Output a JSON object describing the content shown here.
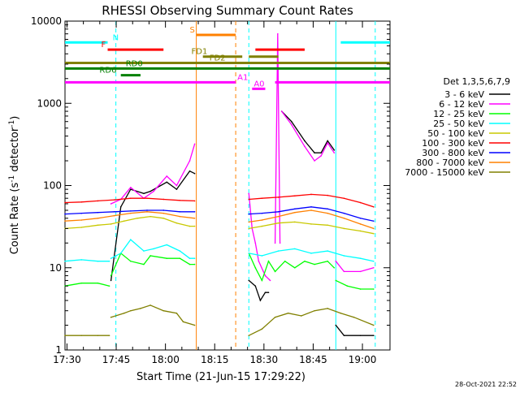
{
  "chart_data": {
    "type": "line",
    "title": "RHESSI Observing Summary Count Rates",
    "xlabel": "Start Time (21-Jun-15 17:29:22)",
    "ylabel_main": "Count Rate (s",
    "ylabel_sup1": "-1",
    "ylabel_mid": " detector",
    "ylabel_sup2": "-1",
    "ylabel_end": ")",
    "timestamp": "28-Oct-2021 22:52",
    "yscale": "log",
    "ylim": [
      1,
      10000
    ],
    "xlim_min": [
      0,
      99
    ],
    "x_ticks": [
      {
        "label": "17:30",
        "min": 0.6
      },
      {
        "label": "17:45",
        "min": 15.6
      },
      {
        "label": "18:00",
        "min": 30.6
      },
      {
        "label": "18:15",
        "min": 45.6
      },
      {
        "label": "18:30",
        "min": 60.6
      },
      {
        "label": "18:45",
        "min": 75.6
      },
      {
        "label": "19:00",
        "min": 90.6
      }
    ],
    "y_ticks": [
      {
        "label": "1",
        "v": 1
      },
      {
        "label": "10",
        "v": 10
      },
      {
        "label": "100",
        "v": 100
      },
      {
        "label": "1000",
        "v": 1000
      },
      {
        "label": "10000",
        "v": 10000
      }
    ],
    "legend_title": "Det 1,3,5,6,7,9",
    "legend_position": "right",
    "series": [
      {
        "name": "3 - 6 keV",
        "color": "#000000",
        "segments": [
          {
            "x": [
              14,
              17,
              20,
              24,
              26,
              31,
              34,
              38,
              39.5
            ],
            "y": [
              7,
              55,
              90,
              80,
              85,
              110,
              90,
              150,
              140
            ]
          },
          {
            "x": [
              56,
              58,
              59.5,
              61,
              62
            ],
            "y": [
              7,
              6,
              4,
              5,
              5
            ]
          },
          {
            "x": [
              66,
              69,
              73,
              76,
              78,
              80,
              82
            ],
            "y": [
              800,
              600,
              350,
              250,
              250,
              350,
              270
            ]
          },
          {
            "x": [
              82.5,
              85,
              90,
              94
            ],
            "y": [
              2,
              1.5,
              1.5,
              1.5
            ]
          }
        ]
      },
      {
        "name": "6 - 12 keV",
        "color": "#ff00ff",
        "segments": [
          {
            "x": [
              14,
              17,
              20,
              24,
              27,
              31,
              34,
              38,
              39.5
            ],
            "y": [
              60,
              68,
              95,
              70,
              85,
              130,
              100,
              200,
              320
            ]
          },
          {
            "x": [
              56,
              57,
              58,
              59,
              61,
              62.5
            ],
            "y": [
              80,
              30,
              20,
              12,
              8,
              7
            ]
          },
          {
            "x": [
              64,
              64.8,
              65.5
            ],
            "y": [
              20,
              7000,
              20
            ]
          },
          {
            "x": [
              66,
              69,
              73,
              76,
              78,
              80,
              82
            ],
            "y": [
              800,
              550,
              300,
              200,
              230,
              330,
              250
            ]
          },
          {
            "x": [
              82.5,
              85,
              90,
              94
            ],
            "y": [
              12,
              9,
              9,
              10
            ]
          }
        ]
      },
      {
        "name": "12 - 25 keV",
        "color": "#00ff00",
        "segments": [
          {
            "x": [
              0,
              5,
              10,
              13.5
            ],
            "y": [
              6,
              6.5,
              6.5,
              6
            ]
          },
          {
            "x": [
              14,
              17,
              20,
              24,
              26,
              31,
              35,
              38,
              39.5
            ],
            "y": [
              8,
              15,
              12,
              11,
              14,
              13,
              13,
              11,
              11
            ]
          },
          {
            "x": [
              56,
              58,
              60,
              62,
              64,
              67,
              70,
              73,
              76,
              80,
              82
            ],
            "y": [
              15,
              10,
              7,
              12,
              9,
              12,
              10,
              12,
              11,
              12,
              10
            ]
          },
          {
            "x": [
              82.5,
              86,
              90,
              94
            ],
            "y": [
              7,
              6,
              5.5,
              5.5
            ]
          }
        ]
      },
      {
        "name": "25 - 50 keV",
        "color": "#00ffff",
        "segments": [
          {
            "x": [
              0,
              5,
              10,
              13.5
            ],
            "y": [
              12,
              12.5,
              12,
              12
            ]
          },
          {
            "x": [
              14,
              17,
              20,
              24,
              27,
              31,
              35,
              38,
              39.5
            ],
            "y": [
              13,
              15,
              22,
              16,
              17,
              19,
              16,
              13,
              13
            ]
          },
          {
            "x": [
              56,
              60,
              65,
              70,
              75,
              80,
              85,
              90,
              94
            ],
            "y": [
              15,
              14,
              16,
              17,
              15,
              16,
              14,
              13,
              12
            ]
          }
        ]
      },
      {
        "name": "50 - 100 keV",
        "color": "#c8c800",
        "segments": [
          {
            "x": [
              0,
              5,
              10,
              14,
              18,
              22,
              26,
              30,
              34,
              38,
              39.5
            ],
            "y": [
              30,
              31,
              33,
              34,
              37,
              40,
              42,
              40,
              35,
              32,
              32
            ]
          },
          {
            "x": [
              56,
              60,
              65,
              70,
              75,
              80,
              85,
              90,
              94
            ],
            "y": [
              30,
              32,
              35,
              36,
              34,
              33,
              30,
              28,
              26
            ]
          }
        ]
      },
      {
        "name": "100 - 300 keV",
        "color": "#ff0000",
        "segments": [
          {
            "x": [
              0,
              5,
              10,
              15,
              20,
              25,
              30,
              35,
              39.5
            ],
            "y": [
              62,
              63,
              65,
              67,
              70,
              70,
              68,
              66,
              65
            ]
          },
          {
            "x": [
              56,
              60,
              65,
              70,
              75,
              80,
              85,
              90,
              94
            ],
            "y": [
              68,
              70,
              72,
              75,
              78,
              76,
              70,
              62,
              55
            ]
          }
        ]
      },
      {
        "name": "300 - 800 keV",
        "color": "#0000ff",
        "segments": [
          {
            "x": [
              0,
              5,
              10,
              15,
              20,
              25,
              30,
              35,
              39.5
            ],
            "y": [
              45,
              46,
              47,
              48,
              49,
              50,
              50,
              48,
              48
            ]
          },
          {
            "x": [
              56,
              60,
              65,
              70,
              75,
              80,
              85,
              90,
              94
            ],
            "y": [
              45,
              46,
              48,
              52,
              55,
              52,
              46,
              40,
              37
            ]
          }
        ]
      },
      {
        "name": "800 - 7000 keV",
        "color": "#ff8000",
        "segments": [
          {
            "x": [
              0,
              5,
              10,
              15,
              20,
              25,
              30,
              35,
              39.5
            ],
            "y": [
              37,
              38,
              40,
              43,
              46,
              48,
              46,
              42,
              40
            ]
          },
          {
            "x": [
              56,
              60,
              65,
              70,
              75,
              80,
              85,
              90,
              94
            ],
            "y": [
              36,
              38,
              42,
              47,
              50,
              46,
              40,
              34,
              30
            ]
          }
        ]
      },
      {
        "name": "7000 - 15000 keV",
        "color": "#808000",
        "segments": [
          {
            "x": [
              0,
              5,
              10,
              13.5
            ],
            "y": [
              1.5,
              1.5,
              1.5,
              1.5
            ]
          },
          {
            "x": [
              14,
              18,
              20,
              23,
              26,
              30,
              34,
              36,
              39.5
            ],
            "y": [
              2.5,
              2.8,
              3,
              3.2,
              3.5,
              3,
              2.8,
              2.2,
              2
            ]
          },
          {
            "x": [
              56,
              60,
              64,
              68,
              72,
              76,
              80,
              84,
              88,
              94
            ],
            "y": [
              1.5,
              1.8,
              2.5,
              2.8,
              2.6,
              3,
              3.2,
              2.8,
              2.5,
              2
            ]
          }
        ]
      }
    ],
    "flags": [
      {
        "label": "N",
        "color": "#00ffff",
        "ylevel": 5500,
        "segments": [
          [
            0,
            13
          ],
          [
            84,
            99
          ]
        ],
        "label_min": 14.5
      },
      {
        "label": "F",
        "color": "#ff0000",
        "ylevel": 4500,
        "segments": [
          [
            13,
            30
          ],
          [
            58,
            73
          ]
        ],
        "label_min": 11
      },
      {
        "label": "S",
        "color": "#ff8000",
        "ylevel": 6800,
        "segments": [
          [
            40,
            52
          ]
        ],
        "label_min": 38
      },
      {
        "label": "FD1",
        "color": "#808000",
        "ylevel": 3700,
        "segments": [
          [
            42,
            54
          ],
          [
            56,
            65
          ]
        ],
        "label_min": 38.5
      },
      {
        "label": "FD2",
        "color": "#808000",
        "ylevel": 3100,
        "segments": [
          [
            0,
            99
          ]
        ],
        "label_min": 44
      },
      {
        "label": "RD0",
        "color": "#008000",
        "ylevel": 2650,
        "segments": [
          [
            0,
            99
          ]
        ],
        "label_min": 18.5
      },
      {
        "label": "RD6",
        "color": "#008000",
        "ylevel": 2200,
        "segments": [
          [
            17,
            23
          ]
        ],
        "label_min": 10.5
      },
      {
        "label": "A1",
        "color": "#ff00ff",
        "ylevel": 1800,
        "segments": [
          [
            0,
            52
          ],
          [
            64,
            99
          ]
        ],
        "label_min": 52.5
      },
      {
        "label": "A0",
        "color": "#ff00ff",
        "ylevel": 1500,
        "segments": [
          [
            57,
            61
          ]
        ],
        "label_min": 57.5
      }
    ],
    "vlines": [
      {
        "min": 15.5,
        "color": "#00ffff",
        "style": "dashed"
      },
      {
        "min": 40,
        "color": "#ff8000",
        "style": "solid"
      },
      {
        "min": 52,
        "color": "#ff8000",
        "style": "dashed"
      },
      {
        "min": 56,
        "color": "#00ffff",
        "style": "dashed"
      },
      {
        "min": 82.5,
        "color": "#00ffff",
        "style": "solid"
      },
      {
        "min": 94.5,
        "color": "#00ffff",
        "style": "dashed"
      }
    ]
  }
}
